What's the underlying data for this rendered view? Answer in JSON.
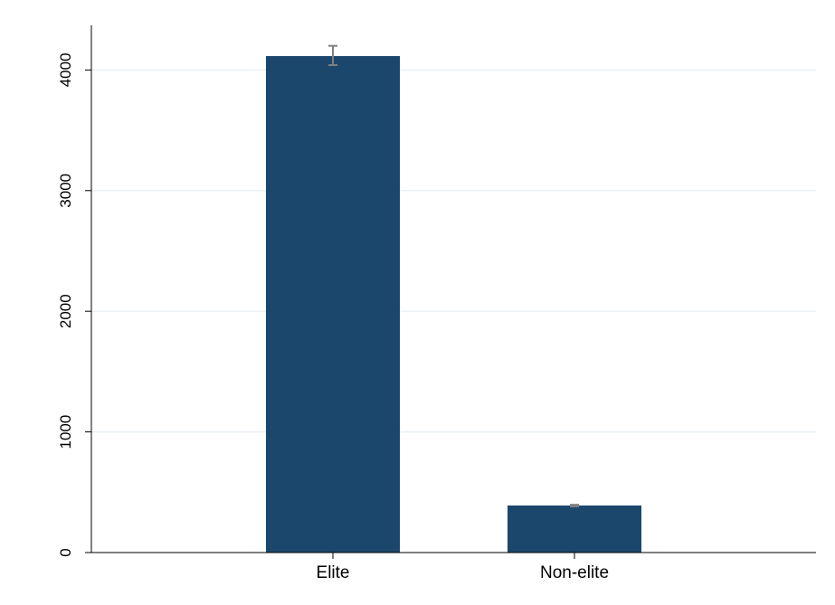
{
  "chart_data": {
    "type": "bar",
    "title": "",
    "xlabel": "",
    "ylabel": "",
    "categories": [
      "Elite",
      "Non-elite"
    ],
    "values": [
      4115,
      390
    ],
    "error_bars": [
      {
        "low": 4040,
        "high": 4200
      },
      {
        "low": 382,
        "high": 396
      }
    ],
    "ylim": [
      0,
      4370
    ],
    "yticks": [
      0,
      1000,
      2000,
      3000,
      4000
    ],
    "xlim": [
      -0.5,
      2.5
    ],
    "grid": true,
    "legend": "none",
    "colors": {
      "bar": "#1c476d",
      "error_bar": "#808080",
      "grid": "#e6eef3",
      "axis": "#000000"
    }
  }
}
